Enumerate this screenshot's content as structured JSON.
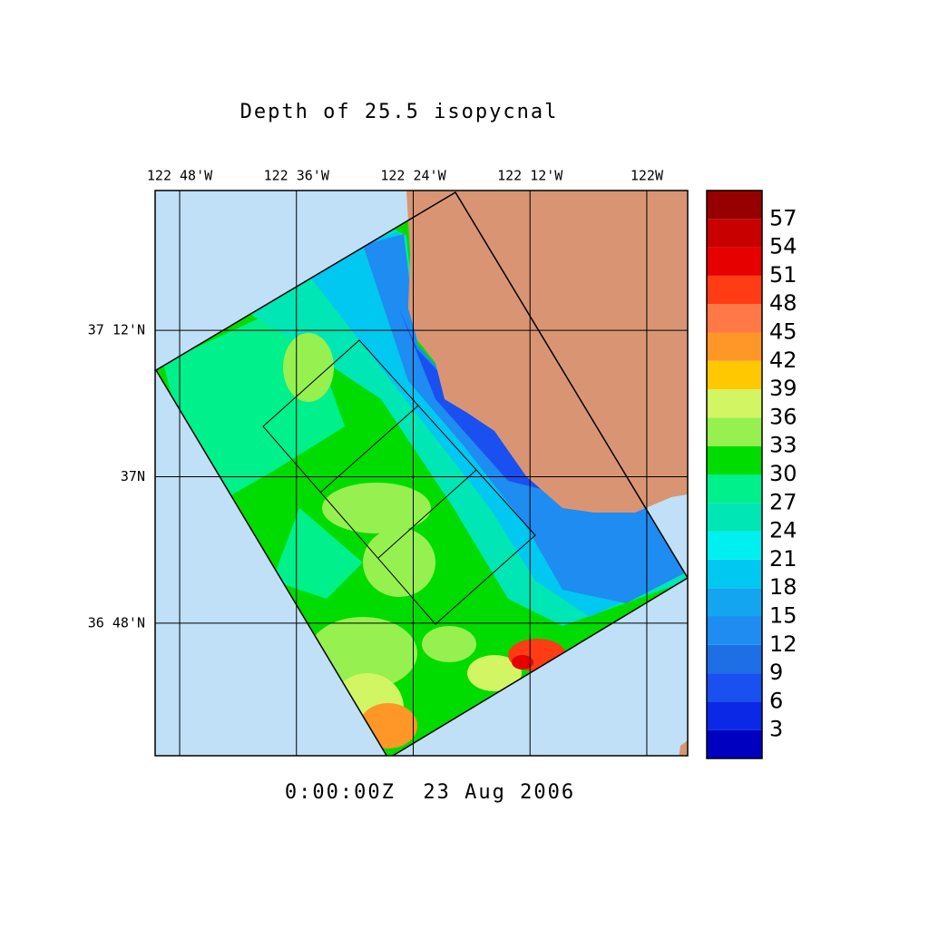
{
  "chart_data": {
    "type": "map",
    "title": "Depth of 25.5 isopycnal",
    "time": "0:00:00Z  23 Aug 2006",
    "xlim": [
      -122.842,
      -121.93
    ],
    "ylim": [
      36.619,
      37.391
    ],
    "xticks": [
      {
        "value": -122.8,
        "label": "122 48'W"
      },
      {
        "value": -122.6,
        "label": "122 36'W"
      },
      {
        "value": -122.4,
        "label": "122 24'W"
      },
      {
        "value": -122.2,
        "label": "122 12'W"
      },
      {
        "value": -122,
        "label": "122W"
      }
    ],
    "yticks": [
      {
        "value": 36.8,
        "label": "36 48'N"
      },
      {
        "value": 37,
        "label": "37N"
      },
      {
        "value": 37.2,
        "label": "37 12'N"
      }
    ],
    "grid": true,
    "colorbar": {
      "levels": [
        0,
        3,
        6,
        9,
        12,
        15,
        18,
        21,
        24,
        27,
        30,
        33,
        36,
        39,
        42,
        45,
        48,
        51,
        54,
        57,
        60
      ],
      "colors": [
        "#0000c0",
        "#0a28e6",
        "#1a50f0",
        "#1e6ee6",
        "#1e8cf0",
        "#14a5f0",
        "#00c8f0",
        "#00f0f0",
        "#00e6b4",
        "#00f08c",
        "#00dc00",
        "#96f050",
        "#d2f564",
        "#ffc800",
        "#ff9628",
        "#ff7846",
        "#ff3c14",
        "#e60000",
        "#c80000",
        "#960000"
      ]
    }
  }
}
